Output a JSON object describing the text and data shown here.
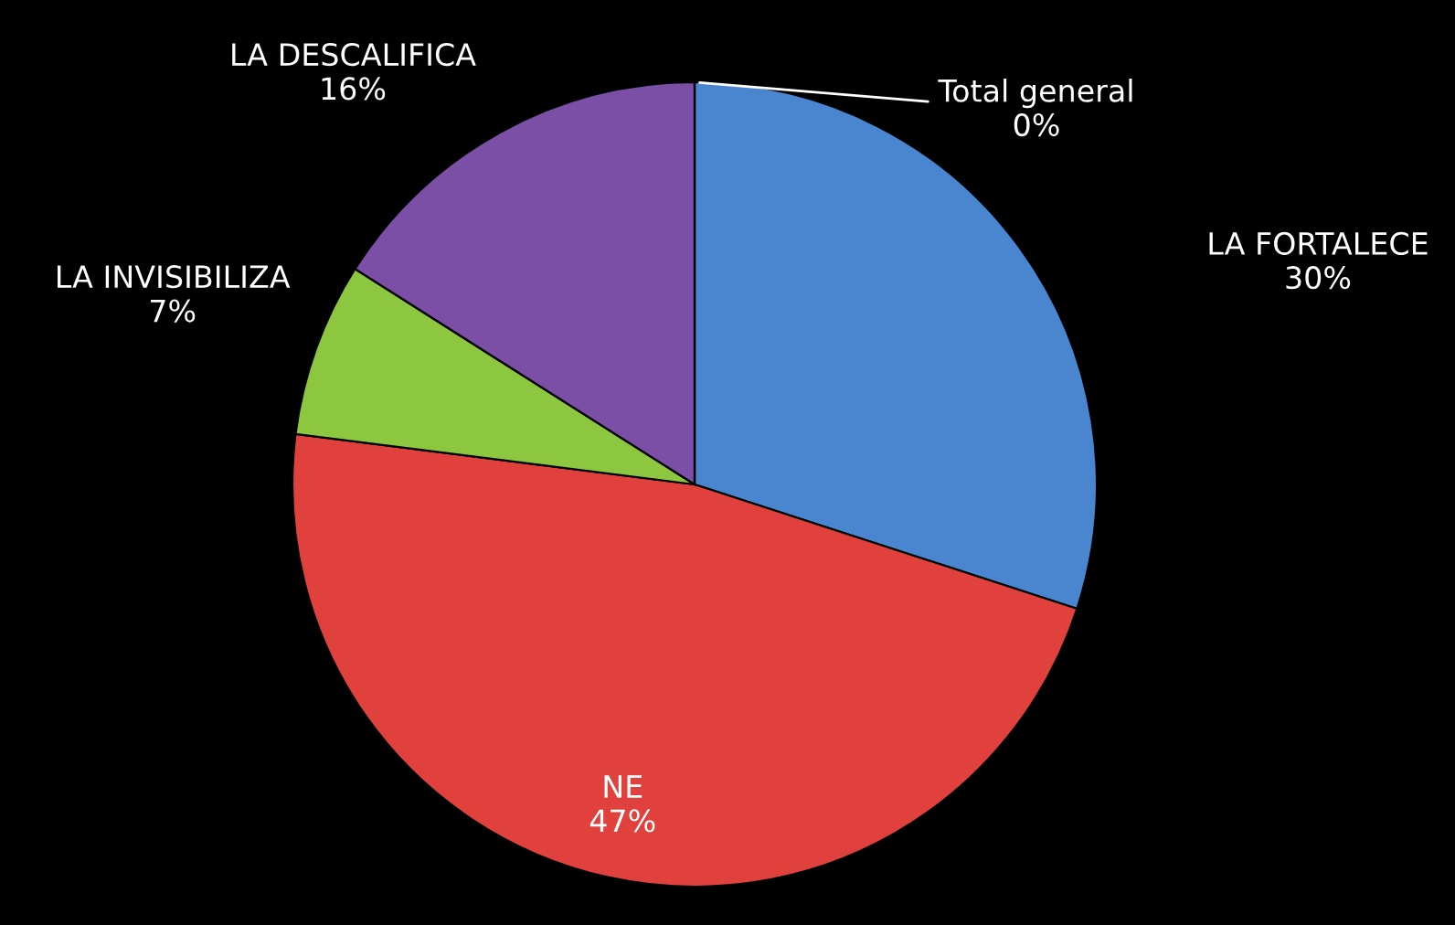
{
  "chart_data": {
    "type": "pie",
    "categories": [
      "LA FORTALECE",
      "NE",
      "LA INVISIBILIZA",
      "LA DESCALIFICA",
      "Total general"
    ],
    "values": [
      30,
      47,
      7,
      16,
      0
    ],
    "colors": [
      "#4a86d0",
      "#e0413c",
      "#8dc63f",
      "#7b4fa6",
      "#ffffff"
    ],
    "value_labels": [
      "30%",
      "47%",
      "7%",
      "16%",
      "0%"
    ]
  }
}
